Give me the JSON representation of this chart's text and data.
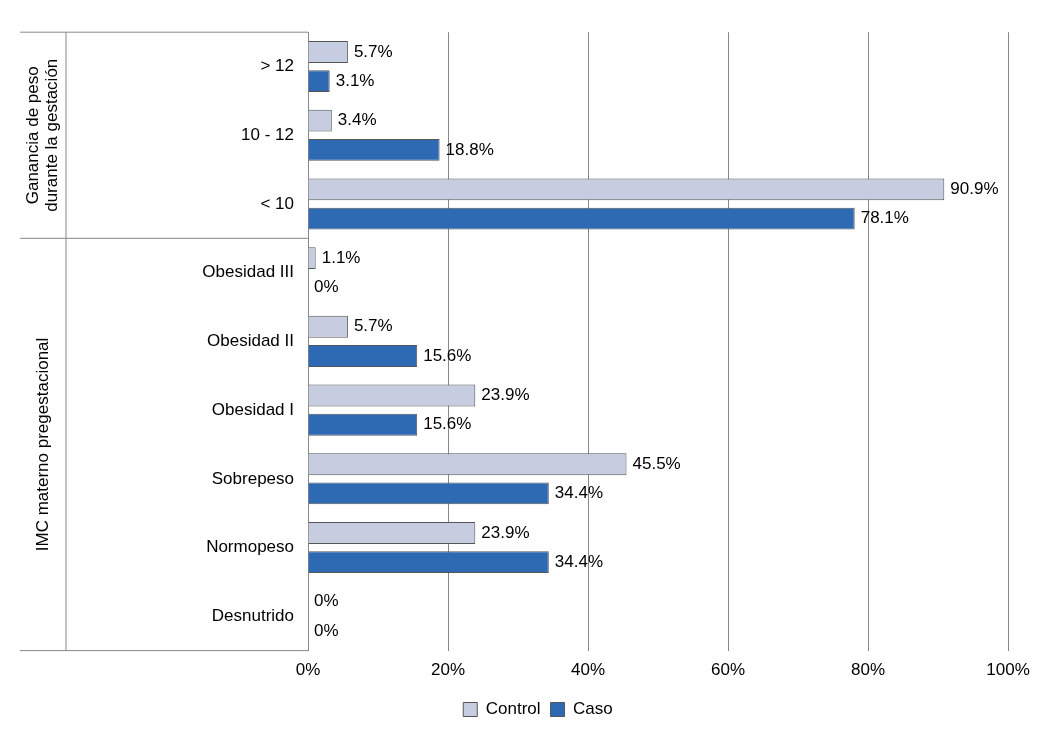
{
  "chart_data": {
    "type": "bar",
    "orientation": "horizontal",
    "categories": [
      "> 12",
      "10 - 12",
      "< 10",
      "Obesidad III",
      "Obesidad II",
      "Obesidad I",
      "Sobrepeso",
      "Normopeso",
      "Desnutrido"
    ],
    "series": [
      {
        "name": "Control",
        "color": "#c6cde0",
        "values": [
          5.7,
          3.4,
          90.9,
          1.1,
          5.7,
          23.9,
          45.5,
          23.9,
          0
        ],
        "value_labels": [
          "5.7%",
          "3.4%",
          "90.9%",
          "1.1%",
          "5.7%",
          "23.9%",
          "45.5%",
          "23.9%",
          "0%"
        ]
      },
      {
        "name": "Caso",
        "color": "#2e6ab4",
        "values": [
          3.1,
          18.8,
          78.1,
          0,
          15.6,
          15.6,
          34.4,
          34.4,
          0
        ],
        "value_labels": [
          "3.1%",
          "18.8%",
          "78.1%",
          "0%",
          "15.6%",
          "15.6%",
          "34.4%",
          "34.4%",
          "0%"
        ]
      }
    ],
    "xlim": [
      0,
      100
    ],
    "xticks": [
      {
        "value": 0,
        "label": "0%"
      },
      {
        "value": 20,
        "label": "20%"
      },
      {
        "value": 40,
        "label": "40%"
      },
      {
        "value": 60,
        "label": "60%"
      },
      {
        "value": 80,
        "label": "80%"
      },
      {
        "value": 100,
        "label": "100%"
      }
    ],
    "grid": "x",
    "legend": "bottom",
    "annotations": [
      "Ganancia de peso durante la gestación",
      "IMC materno pregestacional"
    ]
  }
}
